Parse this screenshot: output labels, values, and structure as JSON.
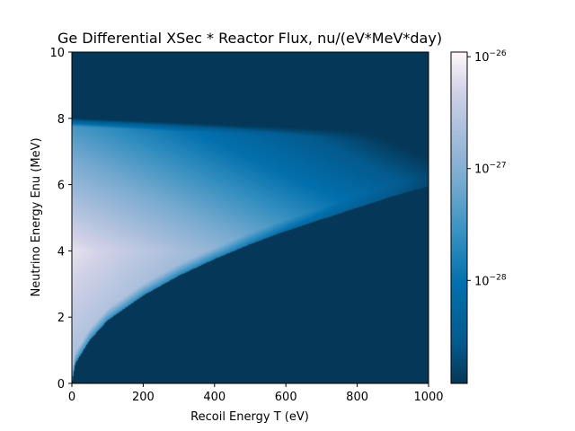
{
  "chart_data": {
    "type": "heatmap",
    "title": "Ge Differential XSec * Reactor Flux, nu/(eV*MeV*day)",
    "xlabel": "Recoil Energy T (eV)",
    "ylabel": "Neutrino Energy Enu (MeV)",
    "xlim": [
      0,
      1000
    ],
    "ylim": [
      0,
      10
    ],
    "x_ticks": [
      0,
      200,
      400,
      600,
      800,
      1000
    ],
    "y_ticks": [
      0,
      2,
      4,
      6,
      8,
      10
    ],
    "x_tick_labels": [
      "0",
      "200",
      "400",
      "600",
      "800",
      "1000"
    ],
    "y_tick_labels": [
      "0",
      "2",
      "4",
      "6",
      "8",
      "10"
    ],
    "colorbar": {
      "scale": "log",
      "range": [
        1.2e-29,
        1.1e-26
      ],
      "tick_values": [
        1e-26,
        1e-27,
        1e-28
      ],
      "tick_base": "10",
      "tick_exponents": [
        "−26",
        "−27",
        "−28"
      ]
    },
    "kinematic_threshold": {
      "description": "no signal below curve",
      "points": [
        [
          0,
          0
        ],
        [
          10,
          0.6
        ],
        [
          50,
          1.3
        ],
        [
          100,
          1.9
        ],
        [
          200,
          2.65
        ],
        [
          300,
          3.25
        ],
        [
          400,
          3.75
        ],
        [
          500,
          4.2
        ],
        [
          600,
          4.6
        ],
        [
          700,
          4.95
        ],
        [
          800,
          5.3
        ],
        [
          900,
          5.65
        ],
        [
          1000,
          5.95
        ]
      ]
    },
    "flux_cutoff_enu": [
      8.0,
      7.55
    ],
    "colormap": "PuBu_r",
    "grid": false
  }
}
